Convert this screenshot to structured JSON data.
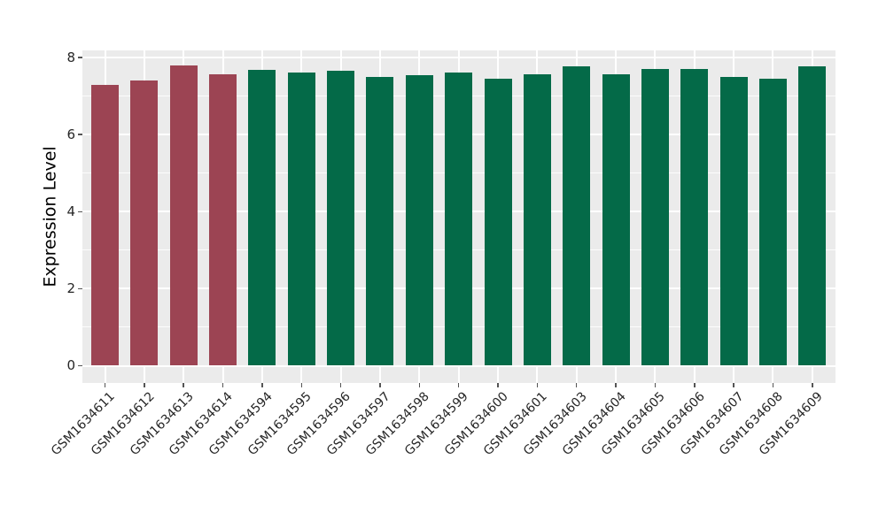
{
  "chart_data": {
    "type": "bar",
    "title": "",
    "xlabel": "",
    "ylabel": "Expression Level",
    "categories": [
      "GSM1634611",
      "GSM1634612",
      "GSM1634613",
      "GSM1634614",
      "GSM1634594",
      "GSM1634595",
      "GSM1634596",
      "GSM1634597",
      "GSM1634598",
      "GSM1634599",
      "GSM1634600",
      "GSM1634601",
      "GSM1634603",
      "GSM1634604",
      "GSM1634605",
      "GSM1634606",
      "GSM1634607",
      "GSM1634608",
      "GSM1634609"
    ],
    "values": [
      7.29,
      7.41,
      7.79,
      7.56,
      7.69,
      7.62,
      7.66,
      7.49,
      7.54,
      7.62,
      7.46,
      7.56,
      7.77,
      7.57,
      7.7,
      7.7,
      7.49,
      7.45,
      7.78
    ],
    "bar_colors": [
      "#9C4453",
      "#9C4453",
      "#9C4453",
      "#9C4453",
      "#046A48",
      "#046A48",
      "#046A48",
      "#046A48",
      "#046A48",
      "#046A48",
      "#046A48",
      "#046A48",
      "#046A48",
      "#046A48",
      "#046A48",
      "#046A48",
      "#046A48",
      "#046A48",
      "#046A48"
    ],
    "palette": {
      "group1_maroon": "#9C4453",
      "group2_green": "#046A48"
    },
    "yticks": [
      0,
      2,
      4,
      6,
      8
    ],
    "ytick_labels": [
      "0",
      "2",
      "4",
      "6",
      "8"
    ],
    "yticks_minor": [
      1,
      3,
      5,
      7
    ],
    "ylim": [
      -0.45,
      8.18
    ],
    "legend": "none",
    "grid": "on",
    "panel_bg": "#EBEBEB",
    "gridline_color": "#FFFFFF",
    "tick_color": "#555555",
    "text_color": "#262626"
  }
}
